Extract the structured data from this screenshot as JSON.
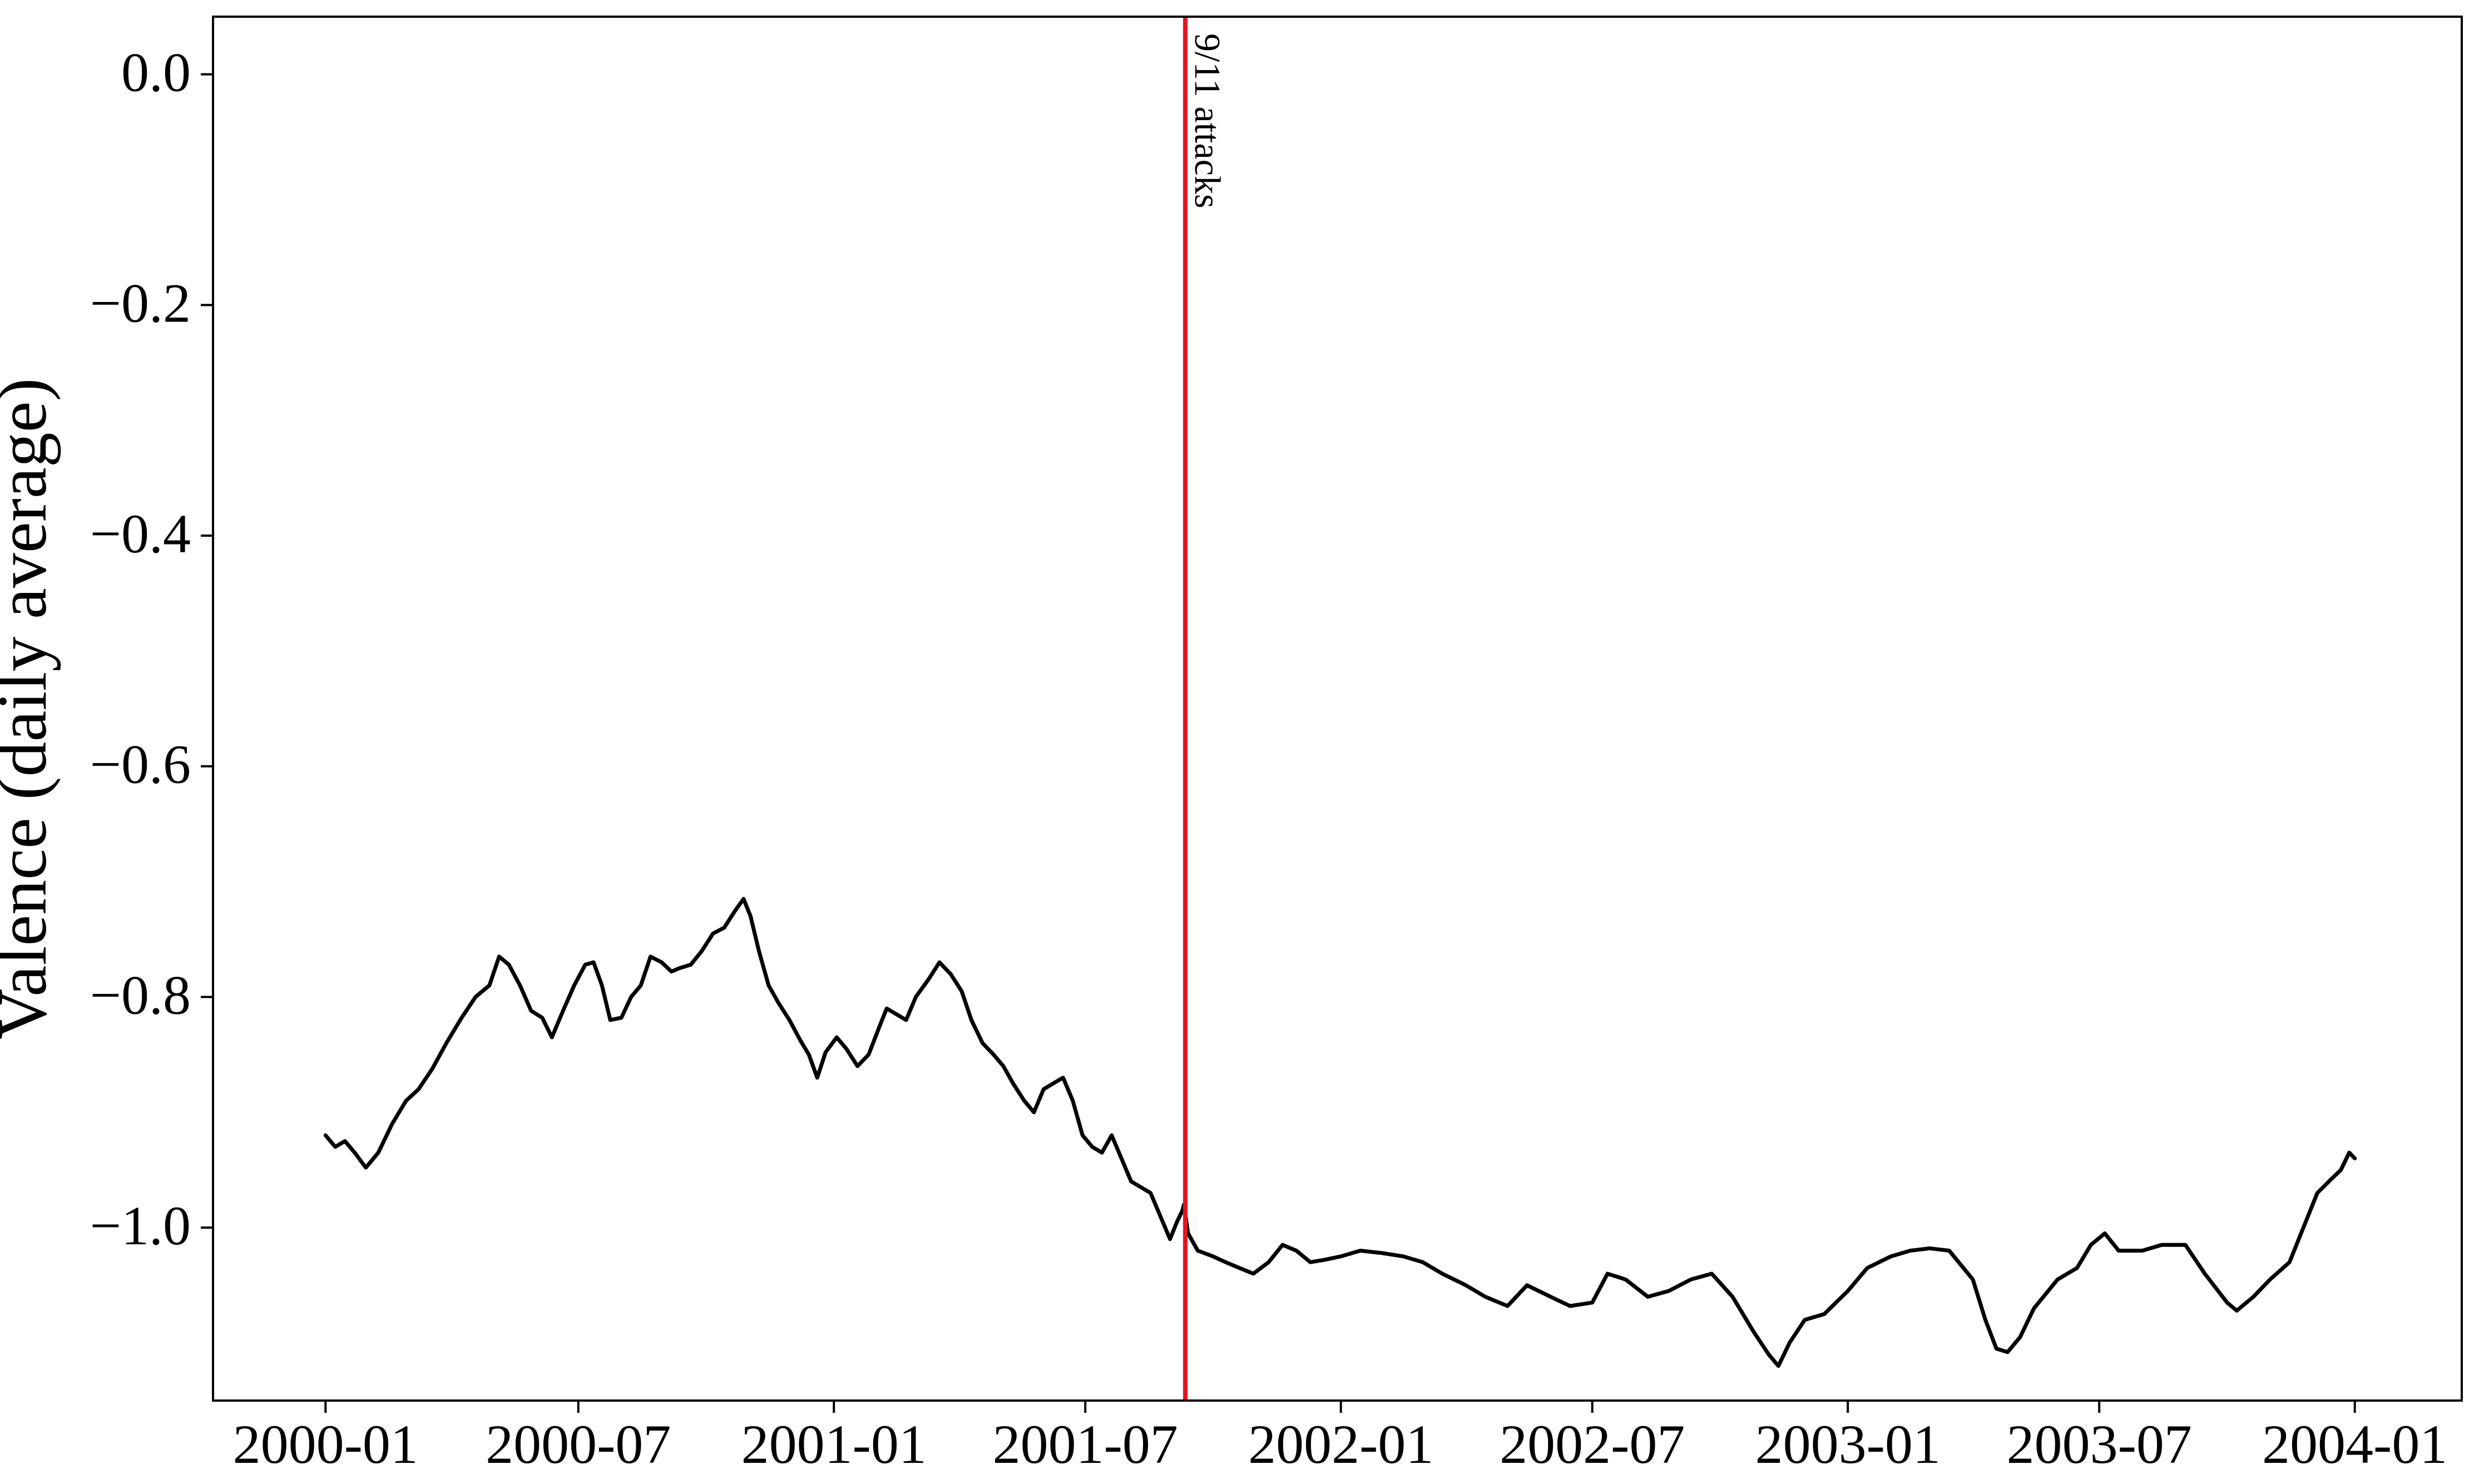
{
  "chart_data": {
    "type": "line",
    "title": "",
    "xlabel": "",
    "ylabel": "Valence (daily average)",
    "x_ticks": [
      "2000-01",
      "2000-07",
      "2001-01",
      "2001-07",
      "2002-01",
      "2002-07",
      "2003-01",
      "2003-07",
      "2004-01"
    ],
    "y_ticks": [
      "0.0",
      "−0.2",
      "−0.4",
      "−0.6",
      "−0.8",
      "−1.0"
    ],
    "y_tick_values": [
      0.0,
      -0.2,
      -0.4,
      -0.6,
      -0.8,
      -1.0
    ],
    "xlim": [
      "1999-10-12",
      "2004-03-18"
    ],
    "ylim": [
      -1.15,
      0.05
    ],
    "grid": false,
    "line_color": "#000000",
    "event": {
      "date": "2001-09-11",
      "label": "9/11 attacks",
      "color": "#e8141b"
    },
    "series": [
      {
        "points": [
          [
            "2000-01-01",
            -0.92
          ],
          [
            "2000-01-08",
            -0.93
          ],
          [
            "2000-01-15",
            -0.925
          ],
          [
            "2000-01-22",
            -0.935
          ],
          [
            "2000-01-30",
            -0.948
          ],
          [
            "2000-02-08",
            -0.935
          ],
          [
            "2000-02-18",
            -0.91
          ],
          [
            "2000-02-28",
            -0.89
          ],
          [
            "2000-03-08",
            -0.88
          ],
          [
            "2000-03-18",
            -0.862
          ],
          [
            "2000-03-28",
            -0.84
          ],
          [
            "2000-04-08",
            -0.818
          ],
          [
            "2000-04-18",
            -0.8
          ],
          [
            "2000-04-28",
            -0.79
          ],
          [
            "2000-05-05",
            -0.765
          ],
          [
            "2000-05-12",
            -0.772
          ],
          [
            "2000-05-20",
            -0.79
          ],
          [
            "2000-05-28",
            -0.812
          ],
          [
            "2000-06-05",
            -0.818
          ],
          [
            "2000-06-12",
            -0.835
          ],
          [
            "2000-06-20",
            -0.812
          ],
          [
            "2000-06-28",
            -0.79
          ],
          [
            "2000-07-06",
            -0.772
          ],
          [
            "2000-07-12",
            -0.77
          ],
          [
            "2000-07-18",
            -0.79
          ],
          [
            "2000-07-24",
            -0.82
          ],
          [
            "2000-08-01",
            -0.818
          ],
          [
            "2000-08-08",
            -0.8
          ],
          [
            "2000-08-15",
            -0.79
          ],
          [
            "2000-08-22",
            -0.765
          ],
          [
            "2000-08-30",
            -0.77
          ],
          [
            "2000-09-06",
            -0.778
          ],
          [
            "2000-09-12",
            -0.775
          ],
          [
            "2000-09-20",
            -0.772
          ],
          [
            "2000-09-28",
            -0.76
          ],
          [
            "2000-10-06",
            -0.745
          ],
          [
            "2000-10-14",
            -0.74
          ],
          [
            "2000-10-22",
            -0.725
          ],
          [
            "2000-10-28",
            -0.715
          ],
          [
            "2000-11-02",
            -0.73
          ],
          [
            "2000-11-08",
            -0.76
          ],
          [
            "2000-11-15",
            -0.79
          ],
          [
            "2000-11-22",
            -0.805
          ],
          [
            "2000-11-30",
            -0.82
          ],
          [
            "2000-12-08",
            -0.838
          ],
          [
            "2000-12-14",
            -0.85
          ],
          [
            "2000-12-20",
            -0.87
          ],
          [
            "2000-12-26",
            -0.848
          ],
          [
            "2001-01-03",
            -0.835
          ],
          [
            "2001-01-10",
            -0.845
          ],
          [
            "2001-01-18",
            -0.86
          ],
          [
            "2001-01-26",
            -0.85
          ],
          [
            "2001-02-03",
            -0.825
          ],
          [
            "2001-02-08",
            -0.81
          ],
          [
            "2001-02-15",
            -0.815
          ],
          [
            "2001-02-22",
            -0.82
          ],
          [
            "2001-03-01",
            -0.8
          ],
          [
            "2001-03-10",
            -0.785
          ],
          [
            "2001-03-18",
            -0.77
          ],
          [
            "2001-03-26",
            -0.78
          ],
          [
            "2001-04-03",
            -0.795
          ],
          [
            "2001-04-10",
            -0.82
          ],
          [
            "2001-04-18",
            -0.84
          ],
          [
            "2001-04-26",
            -0.85
          ],
          [
            "2001-05-03",
            -0.86
          ],
          [
            "2001-05-10",
            -0.875
          ],
          [
            "2001-05-18",
            -0.89
          ],
          [
            "2001-05-25",
            -0.9
          ],
          [
            "2001-06-01",
            -0.88
          ],
          [
            "2001-06-08",
            -0.875
          ],
          [
            "2001-06-15",
            -0.87
          ],
          [
            "2001-06-22",
            -0.89
          ],
          [
            "2001-06-29",
            -0.92
          ],
          [
            "2001-07-06",
            -0.93
          ],
          [
            "2001-07-13",
            -0.935
          ],
          [
            "2001-07-20",
            -0.92
          ],
          [
            "2001-07-27",
            -0.94
          ],
          [
            "2001-08-03",
            -0.96
          ],
          [
            "2001-08-10",
            -0.965
          ],
          [
            "2001-08-17",
            -0.97
          ],
          [
            "2001-08-24",
            -0.99
          ],
          [
            "2001-08-31",
            -1.01
          ],
          [
            "2001-09-05",
            -0.995
          ],
          [
            "2001-09-09",
            -0.985
          ],
          [
            "2001-09-10",
            -0.98
          ],
          [
            "2001-09-13",
            -1.005
          ],
          [
            "2001-09-20",
            -1.02
          ],
          [
            "2001-10-01",
            -1.025
          ],
          [
            "2001-10-10",
            -1.03
          ],
          [
            "2001-10-20",
            -1.035
          ],
          [
            "2001-10-30",
            -1.04
          ],
          [
            "2001-11-10",
            -1.03
          ],
          [
            "2001-11-20",
            -1.015
          ],
          [
            "2001-11-30",
            -1.02
          ],
          [
            "2001-12-10",
            -1.03
          ],
          [
            "2001-12-20",
            -1.028
          ],
          [
            "2002-01-01",
            -1.025
          ],
          [
            "2002-01-15",
            -1.02
          ],
          [
            "2002-01-30",
            -1.022
          ],
          [
            "2002-02-15",
            -1.025
          ],
          [
            "2002-03-01",
            -1.03
          ],
          [
            "2002-03-15",
            -1.04
          ],
          [
            "2002-04-01",
            -1.05
          ],
          [
            "2002-04-15",
            -1.06
          ],
          [
            "2002-05-01",
            -1.068
          ],
          [
            "2002-05-15",
            -1.05
          ],
          [
            "2002-06-01",
            -1.06
          ],
          [
            "2002-06-15",
            -1.068
          ],
          [
            "2002-07-01",
            -1.065
          ],
          [
            "2002-07-12",
            -1.04
          ],
          [
            "2002-07-25",
            -1.045
          ],
          [
            "2002-08-10",
            -1.06
          ],
          [
            "2002-08-25",
            -1.055
          ],
          [
            "2002-09-10",
            -1.045
          ],
          [
            "2002-09-25",
            -1.04
          ],
          [
            "2002-10-10",
            -1.06
          ],
          [
            "2002-10-25",
            -1.09
          ],
          [
            "2002-11-05",
            -1.11
          ],
          [
            "2002-11-12",
            -1.12
          ],
          [
            "2002-11-20",
            -1.1
          ],
          [
            "2002-12-01",
            -1.08
          ],
          [
            "2002-12-15",
            -1.075
          ],
          [
            "2003-01-01",
            -1.055
          ],
          [
            "2003-01-15",
            -1.035
          ],
          [
            "2003-02-01",
            -1.025
          ],
          [
            "2003-02-15",
            -1.02
          ],
          [
            "2003-03-01",
            -1.018
          ],
          [
            "2003-03-15",
            -1.02
          ],
          [
            "2003-04-01",
            -1.045
          ],
          [
            "2003-04-10",
            -1.08
          ],
          [
            "2003-04-18",
            -1.105
          ],
          [
            "2003-04-26",
            -1.108
          ],
          [
            "2003-05-05",
            -1.095
          ],
          [
            "2003-05-15",
            -1.07
          ],
          [
            "2003-06-01",
            -1.045
          ],
          [
            "2003-06-15",
            -1.035
          ],
          [
            "2003-06-25",
            -1.015
          ],
          [
            "2003-07-05",
            -1.005
          ],
          [
            "2003-07-15",
            -1.02
          ],
          [
            "2003-08-01",
            -1.02
          ],
          [
            "2003-08-15",
            -1.015
          ],
          [
            "2003-09-01",
            -1.015
          ],
          [
            "2003-09-15",
            -1.04
          ],
          [
            "2003-10-01",
            -1.065
          ],
          [
            "2003-10-08",
            -1.072
          ],
          [
            "2003-10-20",
            -1.06
          ],
          [
            "2003-11-01",
            -1.045
          ],
          [
            "2003-11-15",
            -1.03
          ],
          [
            "2003-11-25",
            -1.0
          ],
          [
            "2003-12-05",
            -0.97
          ],
          [
            "2003-12-15",
            -0.958
          ],
          [
            "2003-12-22",
            -0.95
          ],
          [
            "2003-12-28",
            -0.935
          ],
          [
            "2004-01-01",
            -0.94
          ]
        ]
      }
    ]
  }
}
